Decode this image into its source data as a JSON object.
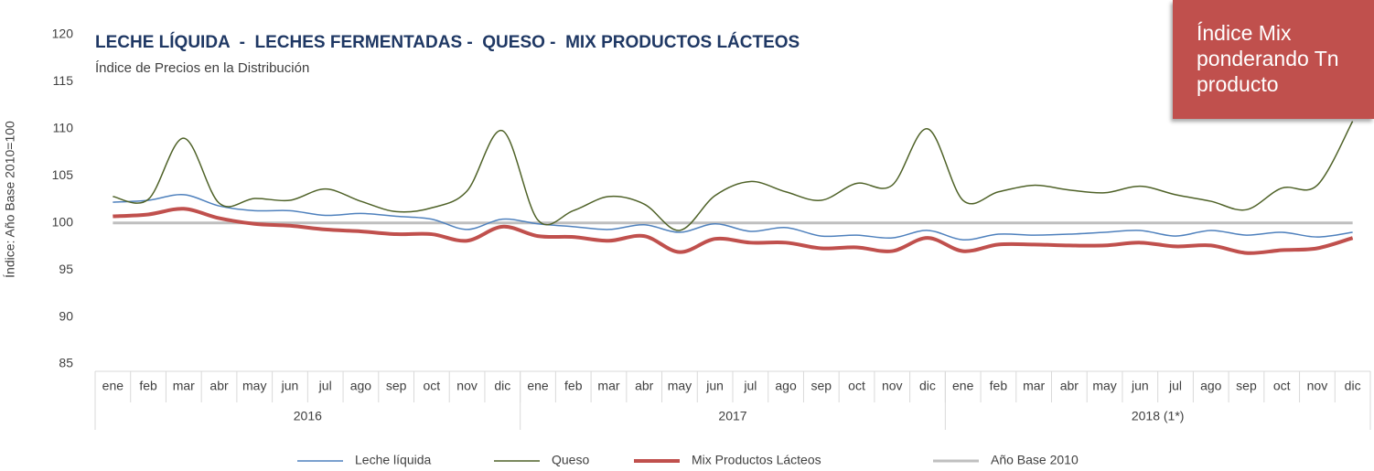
{
  "chart_data": {
    "type": "line",
    "title": "LECHE LÍQUIDA  -  LECHES FERMENTADAS -  QUESO -  MIX PRODUCTOS LÁCTEOS",
    "subtitle": "Índice de Precios en la Distribución",
    "y_label": "Índice: Año Base 2010=100",
    "annotation": "Índice Mix ponderando Tn producto",
    "categories": [
      "ene",
      "feb",
      "mar",
      "abr",
      "may",
      "jun",
      "jul",
      "ago",
      "sep",
      "oct",
      "nov",
      "dic",
      "ene",
      "feb",
      "mar",
      "abr",
      "may",
      "jun",
      "jul",
      "ago",
      "sep",
      "oct",
      "nov",
      "dic",
      "ene",
      "feb",
      "mar",
      "abr",
      "may",
      "jun",
      "jul",
      "ago",
      "sep",
      "oct",
      "nov",
      "dic"
    ],
    "groups": [
      {
        "label": "2016",
        "size": 12
      },
      {
        "label": "2017",
        "size": 12
      },
      {
        "label": "2018 (1*)",
        "size": 12
      }
    ],
    "ylim": [
      85,
      120
    ],
    "yticks": [
      85,
      90,
      95,
      100,
      105,
      110,
      115,
      120
    ],
    "grid": false,
    "series": [
      {
        "name": "Leche líquida",
        "color": "#4f81bd",
        "width": 1.5,
        "values": [
          102.2,
          102.4,
          103.0,
          101.8,
          101.3,
          101.3,
          100.8,
          101.0,
          100.7,
          100.4,
          99.3,
          100.4,
          99.9,
          99.6,
          99.3,
          99.8,
          99.0,
          99.9,
          99.1,
          99.5,
          98.6,
          98.7,
          98.4,
          99.2,
          98.2,
          98.8,
          98.7,
          98.8,
          99.0,
          99.2,
          98.6,
          99.2,
          98.7,
          99.0,
          98.5,
          99.0
        ]
      },
      {
        "name": "Queso",
        "color": "#4f6228",
        "width": 1.5,
        "values": [
          102.8,
          102.5,
          109.0,
          102.1,
          102.6,
          102.4,
          103.6,
          102.3,
          101.2,
          101.6,
          103.4,
          109.8,
          100.3,
          101.3,
          102.8,
          102.0,
          99.2,
          102.9,
          104.4,
          103.3,
          102.4,
          104.2,
          104.0,
          110.0,
          102.4,
          103.3,
          104.0,
          103.5,
          103.2,
          103.9,
          103.0,
          102.3,
          101.4,
          103.7,
          104.0,
          110.8
        ]
      },
      {
        "name": "Mix Productos Lácteos",
        "color": "#c0504d",
        "width": 4,
        "values": [
          100.7,
          100.9,
          101.5,
          100.5,
          99.9,
          99.7,
          99.3,
          99.1,
          98.8,
          98.8,
          98.1,
          99.6,
          98.6,
          98.5,
          98.1,
          98.6,
          96.9,
          98.3,
          97.9,
          97.9,
          97.3,
          97.4,
          97.0,
          98.4,
          97.0,
          97.7,
          97.7,
          97.6,
          97.6,
          97.9,
          97.5,
          97.6,
          96.8,
          97.1,
          97.3,
          98.4
        ]
      },
      {
        "name": "Año Base 2010",
        "color": "#bfbfbf",
        "width": 3,
        "values": [
          100,
          100,
          100,
          100,
          100,
          100,
          100,
          100,
          100,
          100,
          100,
          100,
          100,
          100,
          100,
          100,
          100,
          100,
          100,
          100,
          100,
          100,
          100,
          100,
          100,
          100,
          100,
          100,
          100,
          100,
          100,
          100,
          100,
          100,
          100,
          100
        ]
      }
    ]
  }
}
